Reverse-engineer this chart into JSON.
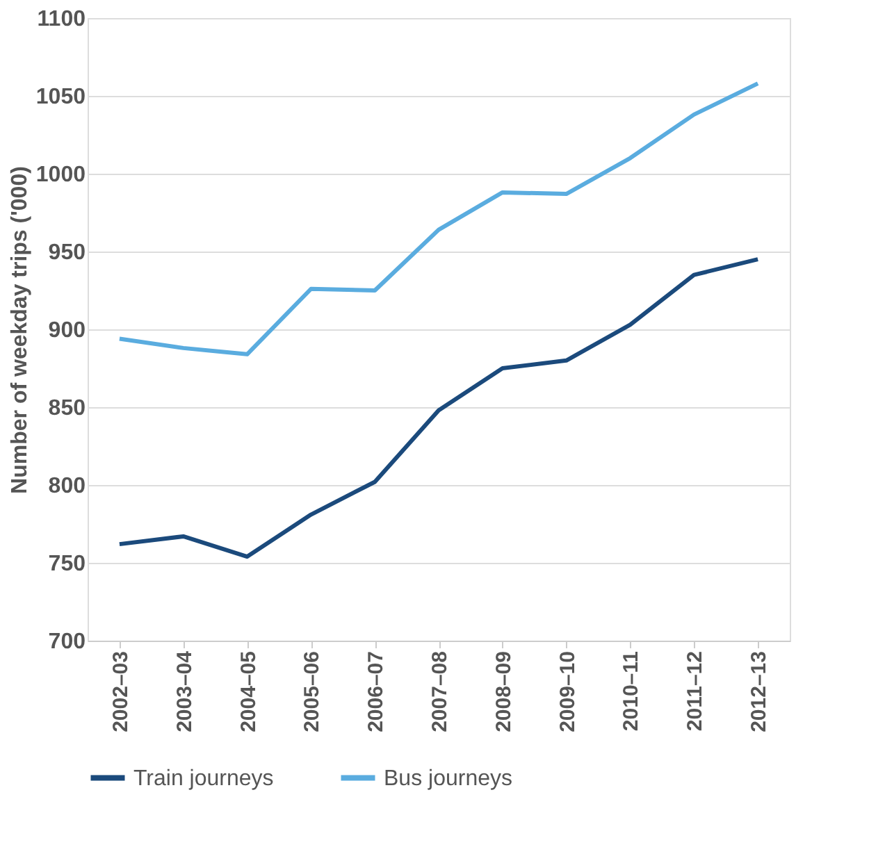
{
  "chart_data": {
    "type": "line",
    "ylabel": "Number of weekday trips ('000)",
    "categories": [
      "2002–03",
      "2003–04",
      "2004–05",
      "2005–06",
      "2006–07",
      "2007–08",
      "2008–09",
      "2009–10",
      "2010–11",
      "2011–12",
      "2012–13"
    ],
    "series": [
      {
        "name": "Train journeys",
        "color": "#1b4a7c",
        "values": [
          762,
          767,
          754,
          781,
          802,
          848,
          875,
          880,
          903,
          935,
          945
        ]
      },
      {
        "name": "Bus journeys",
        "color": "#5aacdf",
        "values": [
          894,
          888,
          884,
          926,
          925,
          964,
          988,
          987,
          1010,
          1038,
          1058
        ]
      }
    ],
    "ylim": [
      700,
      1100
    ],
    "yticks": [
      700,
      750,
      800,
      850,
      900,
      950,
      1000,
      1050,
      1100
    ],
    "grid": "y",
    "legend": "bottom",
    "marker": "none",
    "line_style": "solid"
  }
}
